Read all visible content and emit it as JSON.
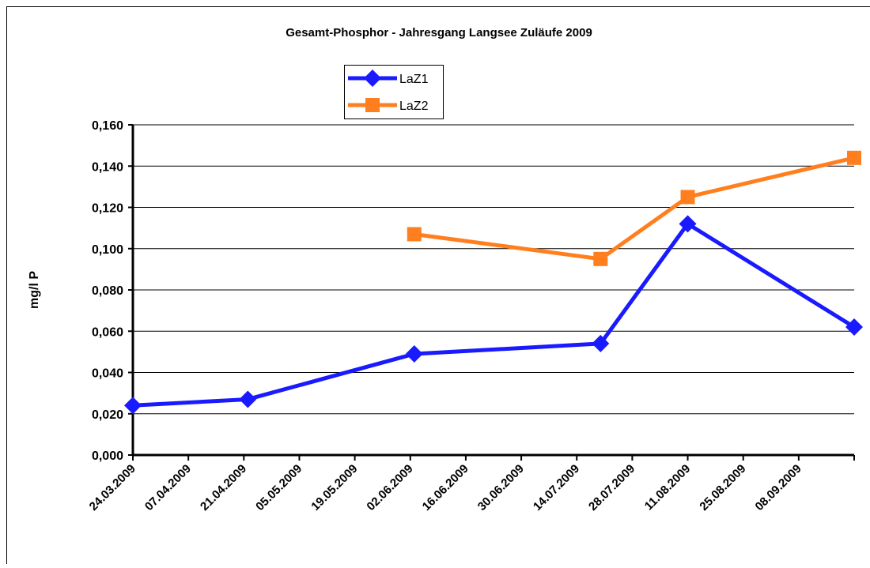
{
  "chart_data": {
    "type": "line",
    "title": "Gesamt-Phosphor - Jahresgang Langsee Zuläufe 2009",
    "y_label": "mg/l P",
    "x": [
      "24.03.2009",
      "22.04.2009",
      "03.06.2009",
      "20.07.2009",
      "11.08.2009",
      "22.09.2009"
    ],
    "series": [
      {
        "name": "LaZ1",
        "color": "#1a1aff",
        "marker": "diamond",
        "values": [
          0.024,
          0.027,
          0.049,
          0.054,
          0.112,
          0.062
        ]
      },
      {
        "name": "LaZ2",
        "color": "#ff7f1f",
        "marker": "square",
        "values": [
          null,
          null,
          0.107,
          0.095,
          0.125,
          0.144
        ]
      }
    ],
    "xlim": [
      "24.03.2009",
      "22.09.2009"
    ],
    "xticks": [
      "24.03.2009",
      "07.04.2009",
      "21.04.2009",
      "05.05.2009",
      "19.05.2009",
      "02.06.2009",
      "16.06.2009",
      "30.06.2009",
      "14.07.2009",
      "28.07.2009",
      "11.08.2009",
      "25.08.2009",
      "08.09.2009"
    ],
    "ylim": [
      0,
      0.16
    ],
    "yticks": [
      {
        "value": 0,
        "label": "0,000"
      },
      {
        "value": 0.02,
        "label": "0,020"
      },
      {
        "value": 0.04,
        "label": "0,040"
      },
      {
        "value": 0.06,
        "label": "0,060"
      },
      {
        "value": 0.08,
        "label": "0,080"
      },
      {
        "value": 0.1,
        "label": "0,100"
      },
      {
        "value": 0.12,
        "label": "0,120"
      },
      {
        "value": 0.14,
        "label": "0,140"
      },
      {
        "value": 0.16,
        "label": "0,160"
      }
    ],
    "grid": true
  }
}
